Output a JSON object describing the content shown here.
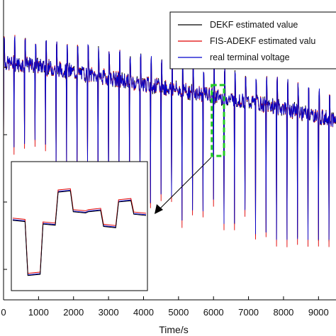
{
  "chart_data": {
    "type": "line",
    "title": "",
    "xlabel": "Time/s",
    "ylabel": "",
    "xlim": [
      0,
      9500
    ],
    "x_ticks": [
      "0",
      "1000",
      "2000",
      "3000",
      "4000",
      "5000",
      "6000",
      "7000",
      "8000",
      "9000"
    ],
    "x_tick_values": [
      0,
      1000,
      2000,
      3000,
      4000,
      5000,
      6000,
      7000,
      8000,
      9000
    ],
    "legend": {
      "placement": "top-right",
      "entries": [
        {
          "name": "DEKF estimated value",
          "color": "#000000"
        },
        {
          "name": "FIS-ADEKF estimated valu",
          "color": "#e00000"
        },
        {
          "name": "real terminal voltage",
          "color": "#0000cc"
        }
      ]
    },
    "series": [
      {
        "name": "DEKF estimated value",
        "color": "#000000"
      },
      {
        "name": "FIS-ADEKF estimated valu",
        "color": "#e00000"
      },
      {
        "name": "real terminal voltage",
        "color": "#0000cc"
      }
    ],
    "trend": {
      "description_values": "baseline voltage level (relative 0-1) at sample times",
      "x": [
        0,
        1000,
        2000,
        3000,
        4000,
        5000,
        6000,
        7000,
        8000,
        9000,
        9500
      ],
      "baseline": [
        0.79,
        0.78,
        0.76,
        0.74,
        0.72,
        0.7,
        0.68,
        0.66,
        0.64,
        0.61,
        0.6
      ],
      "spike_period_s": 300,
      "spike_depth_start": 0.26,
      "spike_depth_end": 0.48
    },
    "highlight_window_x": [
      5950,
      6300
    ],
    "inset": {
      "description": "zoomed view of highlighted region",
      "levels": [
        0.55,
        0.1,
        0.52,
        0.78,
        0.62,
        0.62,
        0.5,
        0.7,
        0.6
      ]
    },
    "grid": false,
    "colors": {
      "highlight_box": "#22cc22",
      "axis": "#000000"
    }
  }
}
